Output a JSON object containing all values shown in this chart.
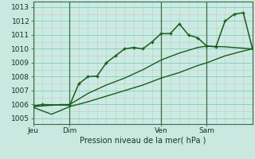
{
  "background_color": "#c8e8e0",
  "plot_bg_color": "#c8ece4",
  "grid_color_major": "#99ccbb",
  "grid_color_minor": "#aaddcc",
  "line_color": "#1a5c1a",
  "xlabel": "Pression niveau de la mer( hPa )",
  "ylim": [
    1004.6,
    1013.4
  ],
  "yticks": [
    1005,
    1006,
    1007,
    1008,
    1009,
    1010,
    1011,
    1012,
    1013
  ],
  "xtick_labels": [
    "Jeu",
    "Dim",
    "Ven",
    "Sam"
  ],
  "xtick_positions": [
    0,
    16,
    56,
    76
  ],
  "vline_positions": [
    0,
    16,
    56,
    76
  ],
  "xlim": [
    0,
    96
  ],
  "series1_x": [
    0,
    4,
    16,
    20,
    24,
    28,
    32,
    36,
    40,
    44,
    48,
    52,
    56,
    60,
    64,
    68,
    72,
    76,
    80,
    84,
    88,
    92,
    96
  ],
  "series1_y": [
    1005.9,
    1006.0,
    1005.95,
    1007.5,
    1008.0,
    1008.05,
    1009.0,
    1009.5,
    1010.0,
    1010.1,
    1010.0,
    1010.5,
    1011.1,
    1011.1,
    1011.8,
    1011.0,
    1010.8,
    1010.2,
    1010.15,
    1012.0,
    1012.5,
    1012.6,
    1010.0
  ],
  "series2_x": [
    0,
    12,
    16,
    24,
    32,
    40,
    48,
    56,
    64,
    72,
    76,
    84,
    92,
    96
  ],
  "series2_y": [
    1005.85,
    1006.0,
    1006.0,
    1006.8,
    1007.4,
    1007.9,
    1008.5,
    1009.2,
    1009.7,
    1010.1,
    1010.2,
    1010.15,
    1010.05,
    1010.0
  ],
  "series3_x": [
    0,
    8,
    16,
    24,
    32,
    40,
    48,
    56,
    64,
    72,
    76,
    84,
    92,
    96
  ],
  "series3_y": [
    1005.8,
    1005.3,
    1005.85,
    1006.2,
    1006.6,
    1007.0,
    1007.4,
    1007.9,
    1008.3,
    1008.8,
    1009.0,
    1009.5,
    1009.85,
    1010.0
  ]
}
